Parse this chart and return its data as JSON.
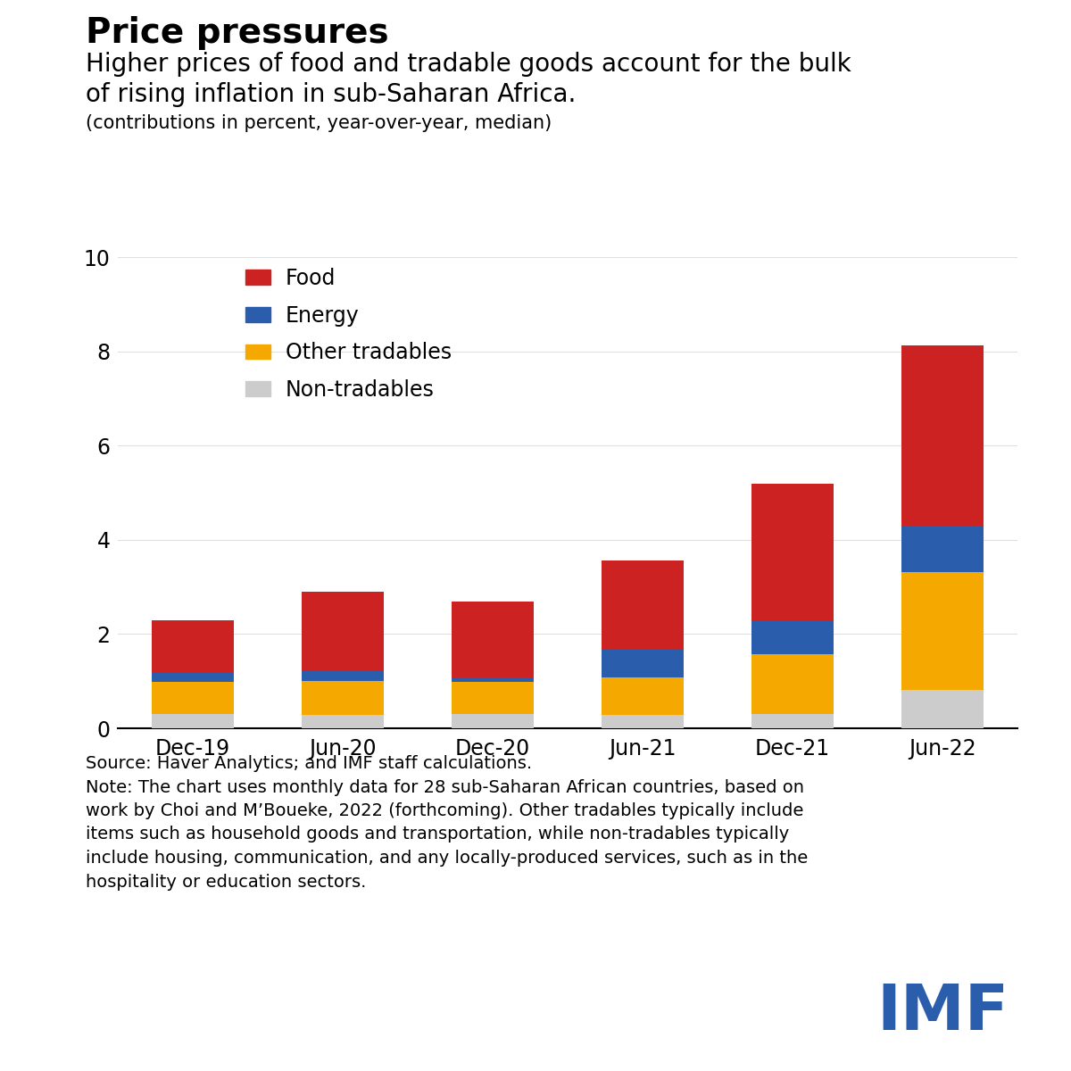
{
  "title": "Price pressures",
  "subtitle": "Higher prices of food and tradable goods account for the bulk\nof rising inflation in sub-Saharan Africa.",
  "caption": "(contributions in percent, year-over-year, median)",
  "categories": [
    "Dec-19",
    "Jun-20",
    "Dec-20",
    "Jun-21",
    "Dec-21",
    "Jun-22"
  ],
  "non_tradables": [
    0.3,
    0.28,
    0.3,
    0.28,
    0.3,
    0.82
  ],
  "other_tradables": [
    0.68,
    0.72,
    0.68,
    0.8,
    1.28,
    2.5
  ],
  "energy": [
    0.22,
    0.22,
    0.1,
    0.58,
    0.7,
    0.98
  ],
  "food": [
    1.1,
    1.68,
    1.6,
    1.9,
    2.9,
    3.82
  ],
  "colors": {
    "food": "#CC2222",
    "energy": "#2B5DAD",
    "other_tradables": "#F5A800",
    "non_tradables": "#CCCCCC"
  },
  "ylim": [
    0,
    10
  ],
  "yticks": [
    0,
    2,
    4,
    6,
    8,
    10
  ],
  "source_text": "Source: Haver Analytics; and IMF staff calculations.\nNote: The chart uses monthly data for 28 sub-Saharan African countries, based on\nwork by Choi and M’Boueke, 2022 (forthcoming). Other tradables typically include\nitems such as household goods and transportation, while non-tradables typically\ninclude housing, communication, and any locally-produced services, such as in the\nhospitality or education sectors.",
  "imf_color": "#2B5DAD",
  "background_color": "#FFFFFF"
}
